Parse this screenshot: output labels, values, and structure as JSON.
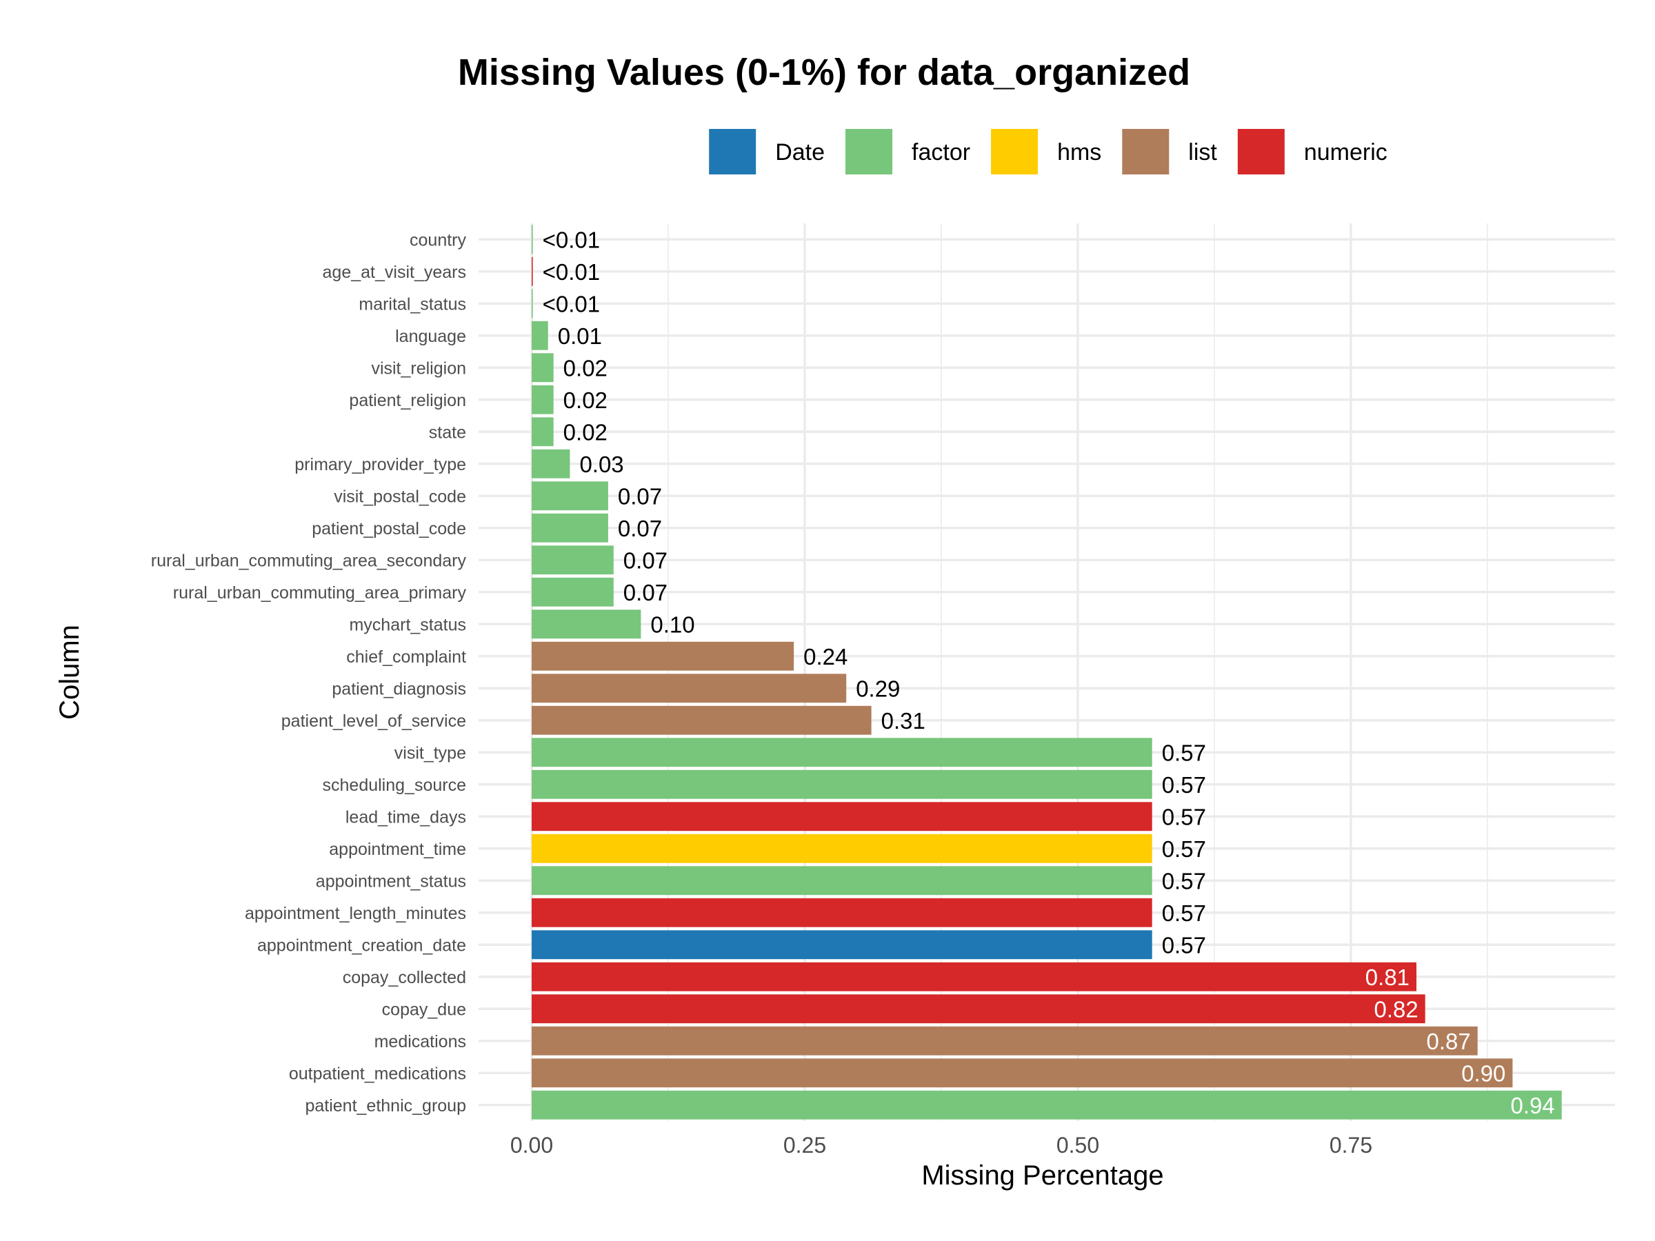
{
  "chart_data": {
    "type": "bar",
    "orientation": "horizontal",
    "title": "Missing Values (0-1%) for data_organized",
    "xlabel": "Missing Percentage",
    "ylabel": "Column",
    "xlim": [
      0,
      0.99
    ],
    "x_ticks": [
      "0.00",
      "0.25",
      "0.50",
      "0.75"
    ],
    "x_tick_values": [
      0,
      0.25,
      0.5,
      0.75
    ],
    "grid": true,
    "legend_position": "top",
    "legend": [
      {
        "name": "Date",
        "color": "#1f78b4"
      },
      {
        "name": "factor",
        "color": "#77c67b"
      },
      {
        "name": "hms",
        "color": "#ffcc00"
      },
      {
        "name": "list",
        "color": "#b07d5a"
      },
      {
        "name": "numeric",
        "color": "#d62828"
      }
    ],
    "bars": [
      {
        "category": "country",
        "value": 0.001,
        "label": "<0.01",
        "type": "factor"
      },
      {
        "category": "age_at_visit_years",
        "value": 0.001,
        "label": "<0.01",
        "type": "numeric"
      },
      {
        "category": "marital_status",
        "value": 0.001,
        "label": "<0.01",
        "type": "factor"
      },
      {
        "category": "language",
        "value": 0.015,
        "label": "0.01",
        "type": "factor"
      },
      {
        "category": "visit_religion",
        "value": 0.02,
        "label": "0.02",
        "type": "factor"
      },
      {
        "category": "patient_religion",
        "value": 0.02,
        "label": "0.02",
        "type": "factor"
      },
      {
        "category": "state",
        "value": 0.02,
        "label": "0.02",
        "type": "factor"
      },
      {
        "category": "primary_provider_type",
        "value": 0.035,
        "label": "0.03",
        "type": "factor"
      },
      {
        "category": "visit_postal_code",
        "value": 0.07,
        "label": "0.07",
        "type": "factor"
      },
      {
        "category": "patient_postal_code",
        "value": 0.07,
        "label": "0.07",
        "type": "factor"
      },
      {
        "category": "rural_urban_commuting_area_secondary",
        "value": 0.075,
        "label": "0.07",
        "type": "factor"
      },
      {
        "category": "rural_urban_commuting_area_primary",
        "value": 0.075,
        "label": "0.07",
        "type": "factor"
      },
      {
        "category": "mychart_status",
        "value": 0.1,
        "label": "0.10",
        "type": "factor"
      },
      {
        "category": "chief_complaint",
        "value": 0.24,
        "label": "0.24",
        "type": "list"
      },
      {
        "category": "patient_diagnosis",
        "value": 0.288,
        "label": "0.29",
        "type": "list"
      },
      {
        "category": "patient_level_of_service",
        "value": 0.311,
        "label": "0.31",
        "type": "list"
      },
      {
        "category": "visit_type",
        "value": 0.568,
        "label": "0.57",
        "type": "factor"
      },
      {
        "category": "scheduling_source",
        "value": 0.568,
        "label": "0.57",
        "type": "factor"
      },
      {
        "category": "lead_time_days",
        "value": 0.568,
        "label": "0.57",
        "type": "numeric"
      },
      {
        "category": "appointment_time",
        "value": 0.568,
        "label": "0.57",
        "type": "hms"
      },
      {
        "category": "appointment_status",
        "value": 0.568,
        "label": "0.57",
        "type": "factor"
      },
      {
        "category": "appointment_length_minutes",
        "value": 0.568,
        "label": "0.57",
        "type": "numeric"
      },
      {
        "category": "appointment_creation_date",
        "value": 0.568,
        "label": "0.57",
        "type": "Date"
      },
      {
        "category": "copay_collected",
        "value": 0.81,
        "label": "0.81",
        "type": "numeric"
      },
      {
        "category": "copay_due",
        "value": 0.818,
        "label": "0.82",
        "type": "numeric"
      },
      {
        "category": "medications",
        "value": 0.866,
        "label": "0.87",
        "type": "list"
      },
      {
        "category": "outpatient_medications",
        "value": 0.898,
        "label": "0.90",
        "type": "list"
      },
      {
        "category": "patient_ethnic_group",
        "value": 0.943,
        "label": "0.94",
        "type": "factor"
      }
    ]
  }
}
